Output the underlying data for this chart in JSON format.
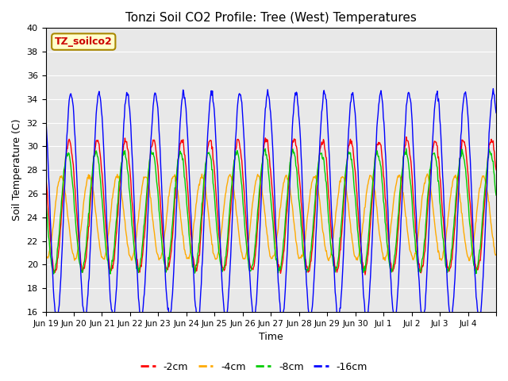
{
  "title": "Tonzi Soil CO2 Profile: Tree (West) Temperatures",
  "xlabel": "Time",
  "ylabel": "Soil Temperature (C)",
  "ylim": [
    16,
    40
  ],
  "yticks": [
    16,
    18,
    20,
    22,
    24,
    26,
    28,
    30,
    32,
    34,
    36,
    38,
    40
  ],
  "xtick_labels": [
    "Jun 19",
    "Jun 20",
    "Jun 21",
    "Jun 22",
    "Jun 23",
    "Jun 24",
    "Jun 25",
    "Jun 26",
    "Jun 27",
    "Jun 28",
    "Jun 29",
    "Jun 30",
    "Jul 1",
    "Jul 2",
    "Jul 3",
    "Jul 4"
  ],
  "legend_label": "TZ_soilco2",
  "series_labels": [
    "-2cm",
    "-4cm",
    "-8cm",
    "-16cm"
  ],
  "series_colors": [
    "#ff0000",
    "#ffaa00",
    "#00cc00",
    "#0000ff"
  ],
  "background_color": "#e8e8e8",
  "legend_box_color": "#ffffcc",
  "legend_text_color": "#cc0000",
  "n_days": 16,
  "samples_per_day": 48,
  "daily_amplitude_2cm": 5.5,
  "daily_amplitude_4cm": 3.5,
  "daily_amplitude_8cm": 5.0,
  "daily_amplitude_16cm": 9.5,
  "base_2cm": 25.0,
  "base_4cm": 24.0,
  "base_8cm": 24.5,
  "base_16cm": 25.0,
  "phase_shift_2cm": 0.0,
  "phase_shift_4cm": 1.8,
  "phase_shift_8cm": 0.3,
  "phase_shift_16cm": -0.4
}
